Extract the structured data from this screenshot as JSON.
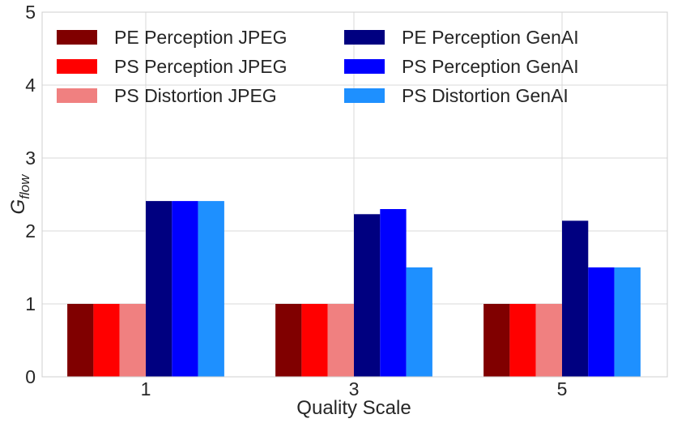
{
  "chart_data": {
    "type": "bar",
    "categories": [
      "1",
      "3",
      "5"
    ],
    "xlabel": "Quality Scale",
    "ylabel_main": "G",
    "ylabel_sub": "flow",
    "ylim": [
      0,
      5
    ],
    "yticks": [
      "0",
      "1",
      "2",
      "3",
      "4",
      "5"
    ],
    "grid": true,
    "legend_position": "top",
    "series": [
      {
        "name": "PE Perception JPEG",
        "color": "#800000",
        "values": [
          1.0,
          1.0,
          1.0
        ]
      },
      {
        "name": "PS Perception JPEG",
        "color": "#ff0000",
        "values": [
          1.0,
          1.0,
          1.0
        ]
      },
      {
        "name": "PS Distortion JPEG",
        "color": "#f08080",
        "values": [
          1.0,
          1.0,
          1.0
        ]
      },
      {
        "name": "PE Perception GenAI",
        "color": "#000080",
        "values": [
          2.41,
          2.23,
          2.14
        ]
      },
      {
        "name": "PS Perception GenAI",
        "color": "#0000ff",
        "values": [
          2.41,
          2.3,
          1.5
        ]
      },
      {
        "name": "PS Distortion GenAI",
        "color": "#1e90ff",
        "values": [
          2.41,
          1.5,
          1.5
        ]
      }
    ]
  }
}
